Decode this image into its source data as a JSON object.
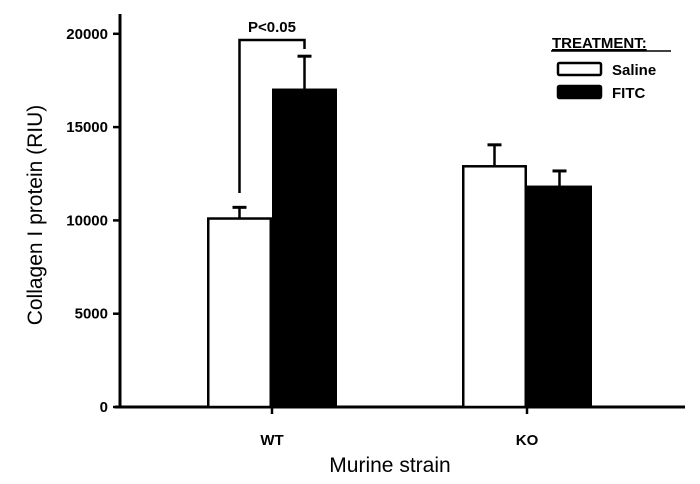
{
  "chart_data": {
    "type": "bar",
    "title": "",
    "xlabel": "Murine strain",
    "ylabel": "Collagen I protein (RIU)",
    "categories": [
      "WT",
      "KO"
    ],
    "ylim": [
      0,
      21000
    ],
    "yticks": [
      0,
      5000,
      10000,
      15000,
      20000
    ],
    "grid": false,
    "legend": {
      "title": "TREATMENT:",
      "position": "top-right",
      "entries": [
        {
          "name": "Saline",
          "fill": "#ffffff",
          "stroke": "#000000"
        },
        {
          "name": "FITC",
          "fill": "#000000",
          "stroke": "#000000"
        }
      ]
    },
    "series": [
      {
        "name": "Saline",
        "values": [
          10100,
          12900
        ],
        "error_upper": [
          600,
          1150
        ],
        "fill": "#ffffff"
      },
      {
        "name": "FITC",
        "values": [
          17000,
          11800
        ],
        "error_upper": [
          1800,
          850
        ],
        "fill": "#000000"
      }
    ],
    "annotations": [
      {
        "text": "P<0.05",
        "type": "significance-bracket",
        "between": [
          "WT Saline",
          "WT FITC"
        ]
      }
    ]
  }
}
